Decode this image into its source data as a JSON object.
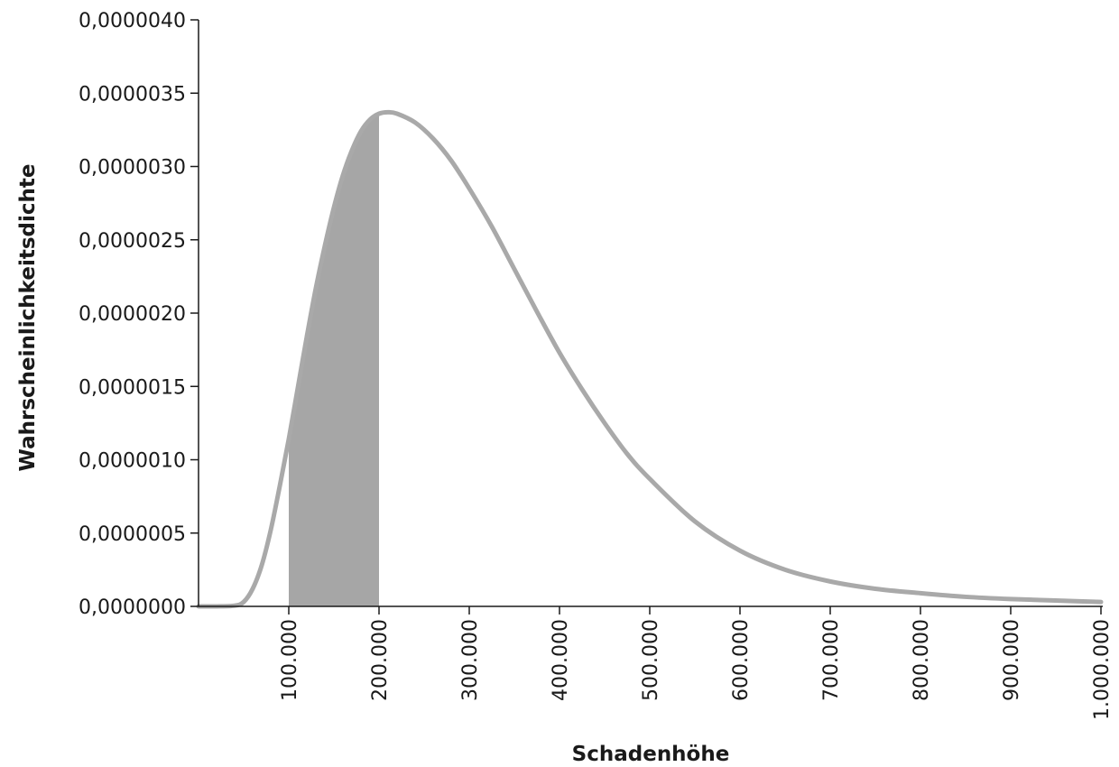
{
  "chart_data": {
    "type": "area",
    "title": "",
    "xlabel": "Schadenhöhe",
    "ylabel": "Wahrscheinlichkeitsdichte",
    "xlim": [
      0,
      1000000
    ],
    "ylim": [
      0,
      4e-06
    ],
    "grid": false,
    "x_ticks": [
      100000,
      200000,
      300000,
      400000,
      500000,
      600000,
      700000,
      800000,
      900000,
      1000000
    ],
    "x_tick_labels": [
      "100.000",
      "200.000",
      "300.000",
      "400.000",
      "500.000",
      "600.000",
      "700.000",
      "800.000",
      "900.000",
      "1.000.000"
    ],
    "y_ticks": [
      0,
      5e-07,
      1e-06,
      1.5e-06,
      2e-06,
      2.5e-06,
      3e-06,
      3.5e-06,
      4e-06
    ],
    "y_tick_labels": [
      "0,0000000",
      "0,0000005",
      "0,0000010",
      "0,0000015",
      "0,0000020",
      "0,0000025",
      "0,0000030",
      "0,0000035",
      "0,0000040"
    ],
    "series": [
      {
        "x": [
          0,
          20000,
          40000,
          50000,
          60000,
          70000,
          80000,
          90000,
          100000,
          110000,
          120000,
          130000,
          140000,
          150000,
          160000,
          170000,
          180000,
          190000,
          200000,
          210000,
          220000,
          240000,
          260000,
          280000,
          300000,
          325000,
          350000,
          375000,
          400000,
          425000,
          450000,
          475000,
          500000,
          550000,
          600000,
          650000,
          700000,
          750000,
          800000,
          850000,
          900000,
          950000,
          1000000
        ],
        "y": [
          0,
          0,
          5e-09,
          3e-08,
          1.2e-07,
          2.8e-07,
          5.2e-07,
          8.2e-07,
          1.14e-06,
          1.49e-06,
          1.84e-06,
          2.17e-06,
          2.46e-06,
          2.72e-06,
          2.94e-06,
          3.11e-06,
          3.24e-06,
          3.32e-06,
          3.36e-06,
          3.37e-06,
          3.36e-06,
          3.3e-06,
          3.19e-06,
          3.04e-06,
          2.85e-06,
          2.59e-06,
          2.3e-06,
          2.01e-06,
          1.73e-06,
          1.48e-06,
          1.25e-06,
          1.04e-06,
          8.7e-07,
          5.8e-07,
          3.8e-07,
          2.5e-07,
          1.7e-07,
          1.2e-07,
          9e-08,
          6.5e-08,
          5e-08,
          4e-08,
          3e-08
        ]
      }
    ],
    "shaded_region": {
      "x_from": 100000,
      "x_to": 200000
    },
    "colors": {
      "curve": "#a9a9a9",
      "fill": "#a6a6a6",
      "axis": "#1a1a1a"
    }
  }
}
